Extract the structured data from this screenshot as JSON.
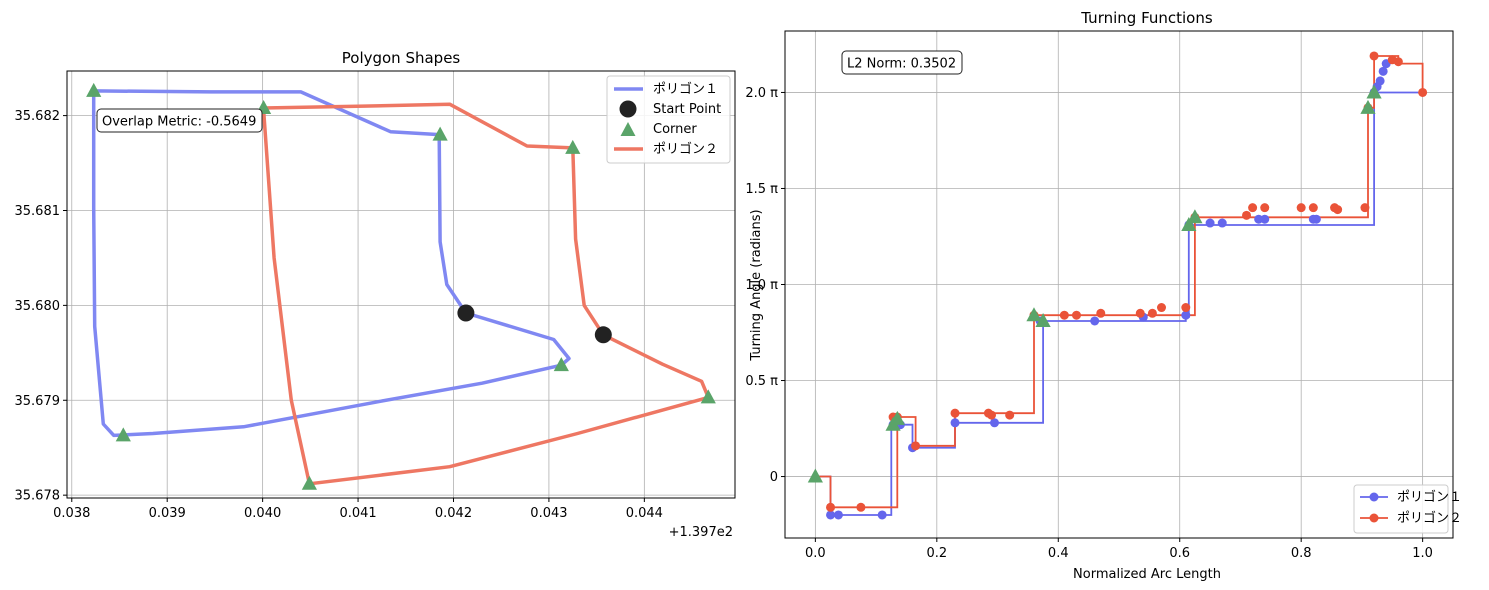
{
  "chart_data": [
    {
      "type": "line",
      "title": "Polygon Shapes",
      "xlabel": "",
      "ylabel": "",
      "x_offset_label": "+1.397e2",
      "xlim": [
        0.03795,
        0.04495
      ],
      "ylim": [
        35.67797,
        35.68247
      ],
      "xticks": [
        0.038,
        0.039,
        0.04,
        0.041,
        0.042,
        0.043,
        0.044
      ],
      "xtick_labels": [
        "0.038",
        "0.039",
        "0.040",
        "0.041",
        "0.042",
        "0.043",
        "0.044"
      ],
      "yticks": [
        35.678,
        35.679,
        35.68,
        35.681,
        35.682
      ],
      "ytick_labels": [
        "35.678",
        "35.679",
        "35.680",
        "35.681",
        "35.682"
      ],
      "grid": true,
      "legend_position": "top-right",
      "legend": [
        {
          "label": "ポリゴン１",
          "kind": "line",
          "color": "#8088f2"
        },
        {
          "label": "Start Point",
          "kind": "circle",
          "color": "#222222"
        },
        {
          "label": "Corner",
          "kind": "triangle",
          "color": "#5aa469"
        },
        {
          "label": "ポリゴン２",
          "kind": "line",
          "color": "#ee7763"
        }
      ],
      "annotation": "Overlap Metric: -0.5649",
      "series": [
        {
          "name": "ポリゴン１",
          "color": "#8088f2",
          "x": [
            0.04213,
            0.04305,
            0.04321,
            0.04313,
            0.0423,
            0.04124,
            0.0398,
            0.03885,
            0.03844,
            0.03833,
            0.03824,
            0.03823,
            0.03823,
            0.03946,
            0.0404,
            0.04134,
            0.04185,
            0.04186,
            0.04193,
            0.04213
          ],
          "y": [
            35.67992,
            35.67964,
            35.67944,
            35.67937,
            35.67918,
            35.67899,
            35.67872,
            35.67865,
            35.67863,
            35.67875,
            35.67978,
            35.68103,
            35.68226,
            35.68225,
            35.68225,
            35.68183,
            35.6818,
            35.68067,
            35.68022,
            35.67992
          ]
        },
        {
          "name": "ポリゴン２",
          "color": "#ee7763",
          "x": [
            0.04357,
            0.04419,
            0.0446,
            0.04467,
            0.0433,
            0.04196,
            0.04049,
            0.0403,
            0.04012,
            0.04001,
            0.04001,
            0.04106,
            0.04196,
            0.04277,
            0.04325,
            0.04328,
            0.04337,
            0.04357
          ],
          "y": [
            35.67969,
            35.67938,
            35.6792,
            35.67903,
            35.67865,
            35.6783,
            35.67812,
            35.679,
            35.6805,
            35.68206,
            35.68208,
            35.6821,
            35.68212,
            35.68168,
            35.68166,
            35.6807,
            35.68,
            35.67969
          ]
        }
      ],
      "start_points": {
        "x": [
          0.04213,
          0.04357
        ],
        "y": [
          35.67992,
          35.67969
        ]
      },
      "corners": {
        "x": [
          0.04313,
          0.03854,
          0.03823,
          0.04186,
          0.04467,
          0.04049,
          0.04001,
          0.04325
        ],
        "y": [
          35.67937,
          35.67863,
          35.68226,
          35.6818,
          35.67903,
          35.67812,
          35.68208,
          35.68166
        ]
      }
    },
    {
      "type": "line",
      "title": "Turning Functions",
      "xlabel": "Normalized Arc Length",
      "ylabel": "Turning Angle (radians)",
      "xlim": [
        -0.05,
        1.05
      ],
      "ylim": [
        -0.32,
        2.32
      ],
      "xticks": [
        0.0,
        0.2,
        0.4,
        0.6,
        0.8,
        1.0
      ],
      "xtick_labels": [
        "0.0",
        "0.2",
        "0.4",
        "0.6",
        "0.8",
        "1.0"
      ],
      "yticks": [
        0,
        0.5,
        1.0,
        1.5,
        2.0
      ],
      "ytick_labels": [
        "0",
        "0.5 π",
        "1.0 π",
        "1.5 π",
        "2.0 π"
      ],
      "grid": true,
      "legend_position": "lower-right",
      "annotation": "L2 Norm: 0.3502",
      "series": [
        {
          "name": "ポリゴン１",
          "color": "#6466ec",
          "x": [
            0.0,
            0.025,
            0.125,
            0.14,
            0.16,
            0.23,
            0.375,
            0.61,
            0.615,
            0.92,
            1.0
          ],
          "y": [
            0.0,
            -0.2,
            0.27,
            0.27,
            0.15,
            0.28,
            0.81,
            0.83,
            1.31,
            2.0,
            2.0
          ],
          "points_x": [
            0.025,
            0.038,
            0.11,
            0.128,
            0.14,
            0.16,
            0.23,
            0.295,
            0.37,
            0.46,
            0.54,
            0.61,
            0.615,
            0.65,
            0.67,
            0.73,
            0.74,
            0.82,
            0.825,
            0.92,
            0.925,
            0.93,
            0.935,
            0.94
          ],
          "points_y": [
            -0.2,
            -0.2,
            -0.2,
            0.27,
            0.27,
            0.15,
            0.28,
            0.28,
            0.81,
            0.81,
            0.83,
            0.84,
            1.31,
            1.32,
            1.32,
            1.34,
            1.34,
            1.34,
            1.34,
            2.0,
            2.03,
            2.06,
            2.11,
            2.15
          ]
        },
        {
          "name": "ポリゴン２",
          "color": "#ea5338",
          "x": [
            0.0,
            0.025,
            0.135,
            0.165,
            0.23,
            0.36,
            0.625,
            0.91,
            0.92,
            0.96,
            1.0
          ],
          "y": [
            0.0,
            -0.16,
            0.31,
            0.16,
            0.33,
            0.84,
            1.35,
            1.92,
            2.19,
            2.15,
            2.0
          ],
          "points_x": [
            0.025,
            0.075,
            0.128,
            0.135,
            0.165,
            0.23,
            0.285,
            0.29,
            0.32,
            0.36,
            0.41,
            0.43,
            0.47,
            0.535,
            0.555,
            0.57,
            0.61,
            0.625,
            0.71,
            0.72,
            0.74,
            0.8,
            0.82,
            0.855,
            0.86,
            0.905,
            0.91,
            0.92,
            0.95,
            0.96,
            1.0
          ],
          "points_y": [
            -0.16,
            -0.16,
            0.31,
            0.31,
            0.16,
            0.33,
            0.33,
            0.32,
            0.32,
            0.84,
            0.84,
            0.84,
            0.85,
            0.85,
            0.85,
            0.88,
            0.88,
            1.35,
            1.36,
            1.4,
            1.4,
            1.4,
            1.4,
            1.4,
            1.39,
            1.4,
            1.92,
            2.19,
            2.17,
            2.16,
            2.0
          ]
        }
      ],
      "corners": {
        "x": [
          0.0,
          0.128,
          0.135,
          0.36,
          0.375,
          0.615,
          0.625,
          0.91,
          0.92
        ],
        "y": [
          0.0,
          0.27,
          0.3,
          0.84,
          0.81,
          1.31,
          1.35,
          1.92,
          2.0
        ]
      }
    }
  ],
  "legend2": [
    {
      "label": "ポリゴン１",
      "color": "#6466ec"
    },
    {
      "label": "ポリゴン２",
      "color": "#ea5338"
    }
  ]
}
